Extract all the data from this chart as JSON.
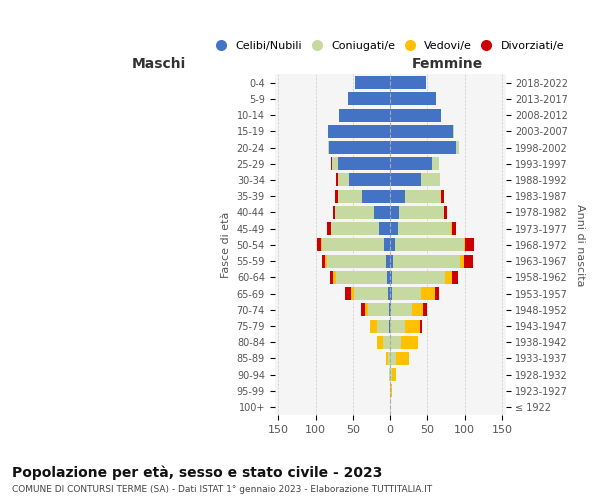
{
  "age_groups": [
    "100+",
    "95-99",
    "90-94",
    "85-89",
    "80-84",
    "75-79",
    "70-74",
    "65-69",
    "60-64",
    "55-59",
    "50-54",
    "45-49",
    "40-44",
    "35-39",
    "30-34",
    "25-29",
    "20-24",
    "15-19",
    "10-14",
    "5-9",
    "0-4"
  ],
  "birth_years": [
    "≤ 1922",
    "1923-1927",
    "1928-1932",
    "1933-1937",
    "1938-1942",
    "1943-1947",
    "1948-1952",
    "1953-1957",
    "1958-1962",
    "1963-1967",
    "1968-1972",
    "1973-1977",
    "1978-1982",
    "1983-1987",
    "1988-1992",
    "1993-1997",
    "1998-2002",
    "2003-2007",
    "2008-2012",
    "2013-2017",
    "2018-2022"
  ],
  "male": {
    "celibi": [
      0,
      0,
      0,
      0,
      0,
      2,
      2,
      3,
      4,
      5,
      8,
      15,
      22,
      38,
      55,
      70,
      82,
      83,
      68,
      56,
      47
    ],
    "coniugati": [
      0,
      0,
      1,
      3,
      10,
      15,
      28,
      45,
      68,
      80,
      83,
      65,
      52,
      32,
      15,
      8,
      2,
      1,
      0,
      0,
      0
    ],
    "vedovi": [
      0,
      0,
      0,
      3,
      8,
      10,
      4,
      4,
      4,
      2,
      2,
      0,
      0,
      0,
      0,
      0,
      0,
      0,
      0,
      0,
      0
    ],
    "divorziati": [
      0,
      0,
      0,
      0,
      0,
      0,
      5,
      8,
      5,
      4,
      5,
      5,
      2,
      4,
      2,
      1,
      0,
      0,
      0,
      0,
      0
    ]
  },
  "female": {
    "nubili": [
      0,
      0,
      0,
      0,
      0,
      0,
      1,
      2,
      3,
      4,
      7,
      10,
      12,
      20,
      42,
      56,
      89,
      85,
      68,
      62,
      48
    ],
    "coniugate": [
      0,
      1,
      3,
      8,
      15,
      20,
      28,
      40,
      70,
      90,
      92,
      72,
      60,
      48,
      25,
      10,
      3,
      1,
      0,
      0,
      0
    ],
    "vedove": [
      0,
      1,
      5,
      18,
      22,
      20,
      15,
      18,
      10,
      5,
      2,
      1,
      0,
      0,
      0,
      0,
      1,
      0,
      0,
      0,
      0
    ],
    "divorziate": [
      0,
      0,
      0,
      0,
      0,
      3,
      5,
      5,
      8,
      12,
      12,
      5,
      5,
      4,
      0,
      0,
      0,
      0,
      0,
      0,
      0
    ]
  },
  "colors": {
    "celibi": "#4472c4",
    "coniugati": "#c5d9a0",
    "vedovi": "#ffc000",
    "divorziati": "#cc0000"
  },
  "xlim": 155,
  "title": "Popolazione per età, sesso e stato civile - 2023",
  "subtitle": "COMUNE DI CONTURSI TERME (SA) - Dati ISTAT 1° gennaio 2023 - Elaborazione TUTTITALIA.IT",
  "ylabel_left": "Fasce di età",
  "ylabel_right": "Anni di nascita",
  "legend_labels": [
    "Celibi/Nubili",
    "Coniugati/e",
    "Vedovi/e",
    "Divorziati/e"
  ],
  "maschi_label": "Maschi",
  "femmine_label": "Femmine",
  "bg_color": "#ffffff",
  "plot_bg": "#f5f5f5"
}
